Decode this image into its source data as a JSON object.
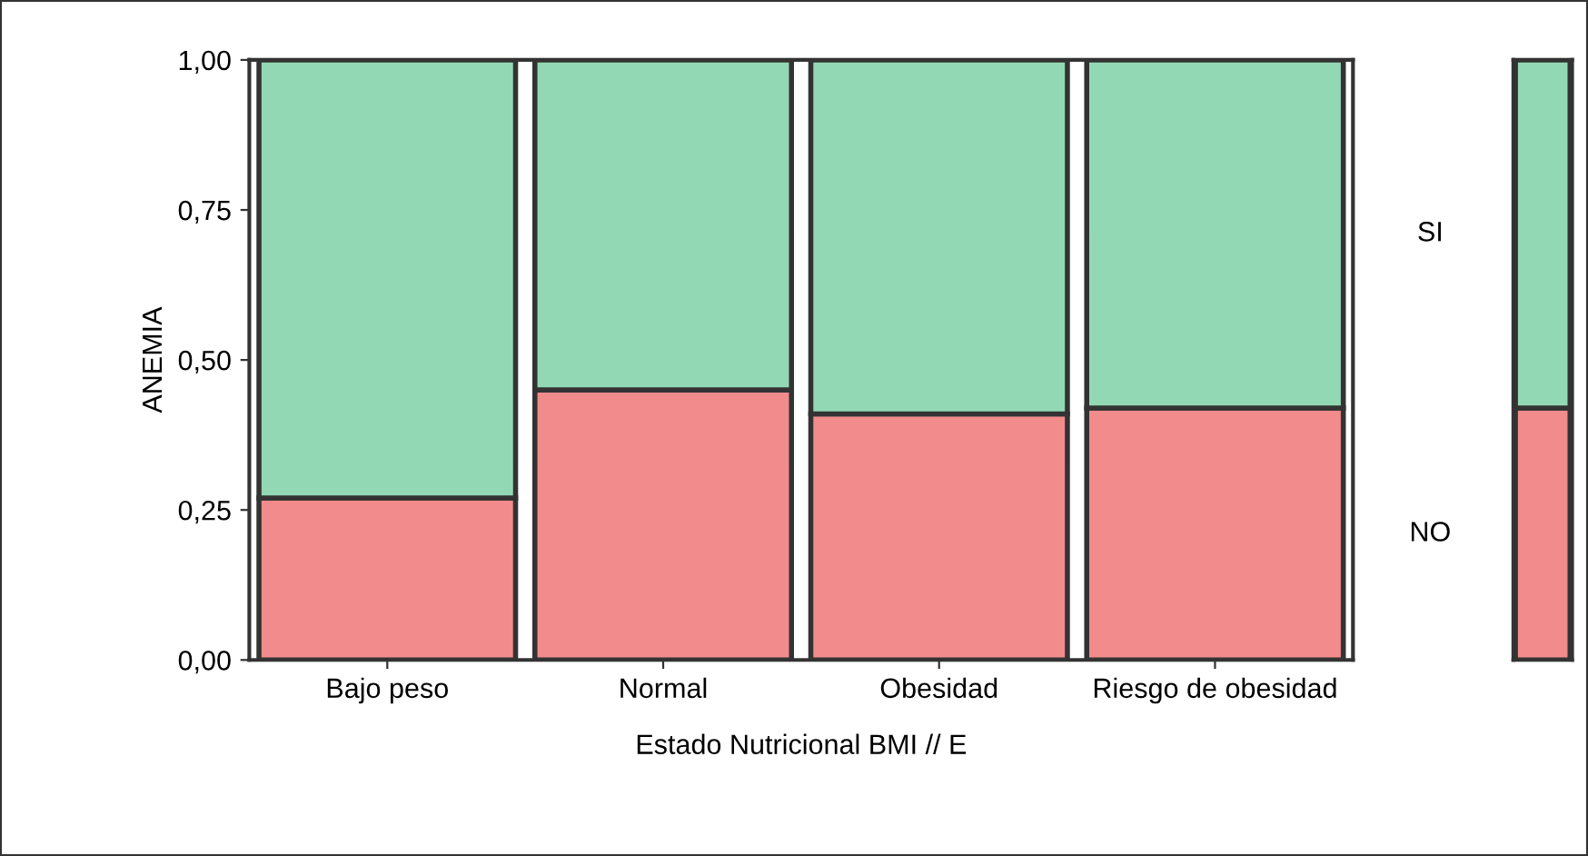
{
  "chart_data": [
    {
      "type": "bar",
      "stacked": true,
      "xlabel": "Estado Nutricional BMI // E",
      "ylabel": "ANEMIA",
      "categories": [
        "Bajo peso",
        "Normal",
        "Obesidad",
        "Riesgo de obesidad"
      ],
      "series": [
        {
          "name": "NO",
          "color": "#f28b8b",
          "values": [
            0.27,
            0.45,
            0.41,
            0.42
          ]
        },
        {
          "name": "SI",
          "color": "#93d8b4",
          "values": [
            0.73,
            0.55,
            0.59,
            0.58
          ]
        }
      ],
      "ylim": [
        0,
        1
      ],
      "yticks": [
        {
          "value": 0,
          "label": "0,00"
        },
        {
          "value": 0.25,
          "label": "0,25"
        },
        {
          "value": 0.5,
          "label": "0,50"
        },
        {
          "value": 0.75,
          "label": "0,75"
        },
        {
          "value": 1,
          "label": "1,00"
        }
      ],
      "grid": false,
      "legend": "right"
    },
    {
      "type": "bar",
      "stacked": true,
      "categories": [
        null
      ],
      "series": [
        {
          "color": "#f28b8b",
          "values": [
            0.42
          ]
        },
        {
          "color": "#93d8b4",
          "values": [
            0.58
          ]
        }
      ],
      "ylim": [
        0,
        1
      ]
    }
  ]
}
